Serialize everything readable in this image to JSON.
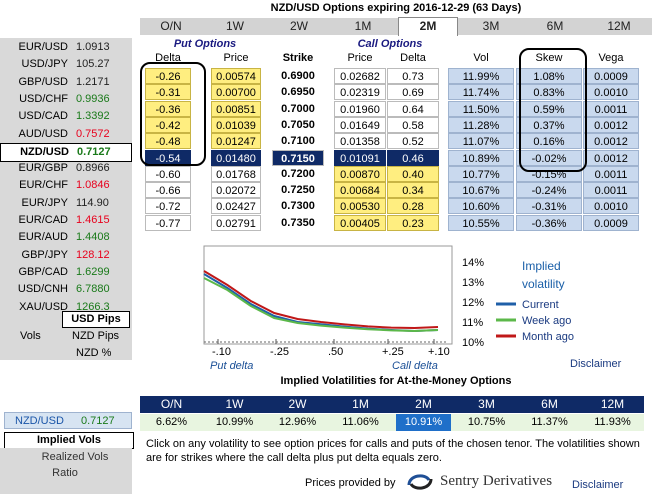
{
  "title": "NZD/USD Options expiring 2016-12-29 (63 Days)",
  "tenors": [
    "O/N",
    "1W",
    "2W",
    "1M",
    "2M",
    "3M",
    "6M",
    "12M"
  ],
  "active_tenor": "2M",
  "pairs": [
    {
      "symbol": "EUR/USD",
      "value": "1.0913",
      "tone": "neu"
    },
    {
      "symbol": "USD/JPY",
      "value": "105.27",
      "tone": "neu"
    },
    {
      "symbol": "GBP/USD",
      "value": "1.2171",
      "tone": "neu"
    },
    {
      "symbol": "USD/CHF",
      "value": "0.9936",
      "tone": "pos"
    },
    {
      "symbol": "USD/CAD",
      "value": "1.3392",
      "tone": "pos"
    },
    {
      "symbol": "AUD/USD",
      "value": "0.7572",
      "tone": "neg"
    },
    {
      "symbol": "NZD/USD",
      "value": "0.7127",
      "tone": "pos",
      "selected": true
    },
    {
      "symbol": "EUR/GBP",
      "value": "0.8966",
      "tone": "neu"
    },
    {
      "symbol": "EUR/CHF",
      "value": "1.0846",
      "tone": "neg"
    },
    {
      "symbol": "EUR/JPY",
      "value": "114.90",
      "tone": "neu"
    },
    {
      "symbol": "EUR/CAD",
      "value": "1.4615",
      "tone": "neg"
    },
    {
      "symbol": "EUR/AUD",
      "value": "1.4408",
      "tone": "pos"
    },
    {
      "symbol": "GBP/JPY",
      "value": "128.12",
      "tone": "neg"
    },
    {
      "symbol": "GBP/CAD",
      "value": "1.6299",
      "tone": "pos"
    },
    {
      "symbol": "USD/CNH",
      "value": "6.7880",
      "tone": "pos"
    },
    {
      "symbol": "XAU/USD",
      "value": "1266.3",
      "tone": "pos"
    }
  ],
  "units": {
    "usd_pips": "USD Pips",
    "vols": "Vols",
    "nzd_pips": "NZD Pips",
    "nzd_pct": "NZD %"
  },
  "table": {
    "put_group": "Put Options",
    "call_group": "Call Options",
    "headers": {
      "put_delta": "Delta",
      "put_price": "Price",
      "strike": "Strike",
      "call_price": "Price",
      "call_delta": "Delta",
      "vol": "Vol",
      "skew": "Skew",
      "vega": "Vega"
    },
    "rows": [
      {
        "put_delta": "-0.26",
        "put_price": "0.00574",
        "strike": "0.6900",
        "call_price": "0.02682",
        "call_delta": "0.73",
        "vol": "11.99%",
        "skew": "1.08%",
        "vega": "0.0009",
        "put_itm": false
      },
      {
        "put_delta": "-0.31",
        "put_price": "0.00700",
        "strike": "0.6950",
        "call_price": "0.02319",
        "call_delta": "0.69",
        "vol": "11.74%",
        "skew": "0.83%",
        "vega": "0.0010",
        "put_itm": false
      },
      {
        "put_delta": "-0.36",
        "put_price": "0.00851",
        "strike": "0.7000",
        "call_price": "0.01960",
        "call_delta": "0.64",
        "vol": "11.50%",
        "skew": "0.59%",
        "vega": "0.0011",
        "put_itm": false
      },
      {
        "put_delta": "-0.42",
        "put_price": "0.01039",
        "strike": "0.7050",
        "call_price": "0.01649",
        "call_delta": "0.58",
        "vol": "11.28%",
        "skew": "0.37%",
        "vega": "0.0012",
        "put_itm": false
      },
      {
        "put_delta": "-0.48",
        "put_price": "0.01247",
        "strike": "0.7100",
        "call_price": "0.01358",
        "call_delta": "0.52",
        "vol": "11.07%",
        "skew": "0.16%",
        "vega": "0.0012",
        "put_itm": false
      },
      {
        "put_delta": "-0.54",
        "put_price": "0.01480",
        "strike": "0.7150",
        "call_price": "0.01091",
        "call_delta": "0.46",
        "vol": "10.89%",
        "skew": "-0.02%",
        "vega": "0.0012",
        "atm": true
      },
      {
        "put_delta": "-0.60",
        "put_price": "0.01768",
        "strike": "0.7200",
        "call_price": "0.00870",
        "call_delta": "0.40",
        "vol": "10.77%",
        "skew": "-0.15%",
        "vega": "0.0011",
        "call_itm": false
      },
      {
        "put_delta": "-0.66",
        "put_price": "0.02072",
        "strike": "0.7250",
        "call_price": "0.00684",
        "call_delta": "0.34",
        "vol": "10.67%",
        "skew": "-0.24%",
        "vega": "0.0011",
        "call_itm": false
      },
      {
        "put_delta": "-0.72",
        "put_price": "0.02427",
        "strike": "0.7300",
        "call_price": "0.00530",
        "call_delta": "0.28",
        "vol": "10.60%",
        "skew": "-0.31%",
        "vega": "0.0010",
        "call_itm": false
      },
      {
        "put_delta": "-0.77",
        "put_price": "0.02791",
        "strike": "0.7350",
        "call_price": "0.00405",
        "call_delta": "0.23",
        "vol": "10.55%",
        "skew": "-0.36%",
        "vega": "0.0009",
        "call_itm": false
      }
    ]
  },
  "chart_data": {
    "type": "line",
    "x_ticks": [
      "-.10",
      "-.25",
      ".50",
      "+.25",
      "+.10"
    ],
    "x_group_labels": [
      "Put delta",
      "Call delta"
    ],
    "y_ticks": [
      "14%",
      "13%",
      "12%",
      "11%",
      "10%"
    ],
    "ylim": [
      10,
      14
    ],
    "legend_title": "Implied volatility",
    "series": [
      {
        "name": "Current",
        "color": "#1f5fa8",
        "values": [
          13.4,
          12.7,
          11.9,
          11.3,
          11.0,
          10.89,
          10.77,
          10.67,
          10.6,
          10.55,
          10.6
        ]
      },
      {
        "name": "Week ago",
        "color": "#5cb84a",
        "values": [
          13.2,
          12.6,
          11.8,
          11.2,
          10.95,
          10.82,
          10.72,
          10.64,
          10.58,
          10.55,
          10.6
        ]
      },
      {
        "name": "Month ago",
        "color": "#c01818",
        "values": [
          13.55,
          12.85,
          12.05,
          11.45,
          11.15,
          11.0,
          10.88,
          10.78,
          10.72,
          10.7,
          10.75
        ]
      }
    ]
  },
  "atm": {
    "title": "Implied Volatilities for At-the-Money Options",
    "tenors": [
      "O/N",
      "1W",
      "2W",
      "1M",
      "2M",
      "3M",
      "6M",
      "12M"
    ],
    "vols": [
      "6.62%",
      "10.99%",
      "12.96%",
      "11.06%",
      "10.91%",
      "10.75%",
      "11.37%",
      "11.93%"
    ],
    "selected_index": 4
  },
  "bottom_left": {
    "pair": "NZD/USD",
    "value": "0.7127",
    "implied": "Implied Vols",
    "realized": "Realized Vols",
    "ratio": "Ratio"
  },
  "info_text": "Click on any volatility to see option prices for calls and puts of the chosen tenor. The volatilities shown are for strikes where the call delta plus put delta equals zero.",
  "provided_by": "Prices provided by",
  "provider_name": "Sentry Derivatives",
  "disclaimer": "Disclaimer"
}
